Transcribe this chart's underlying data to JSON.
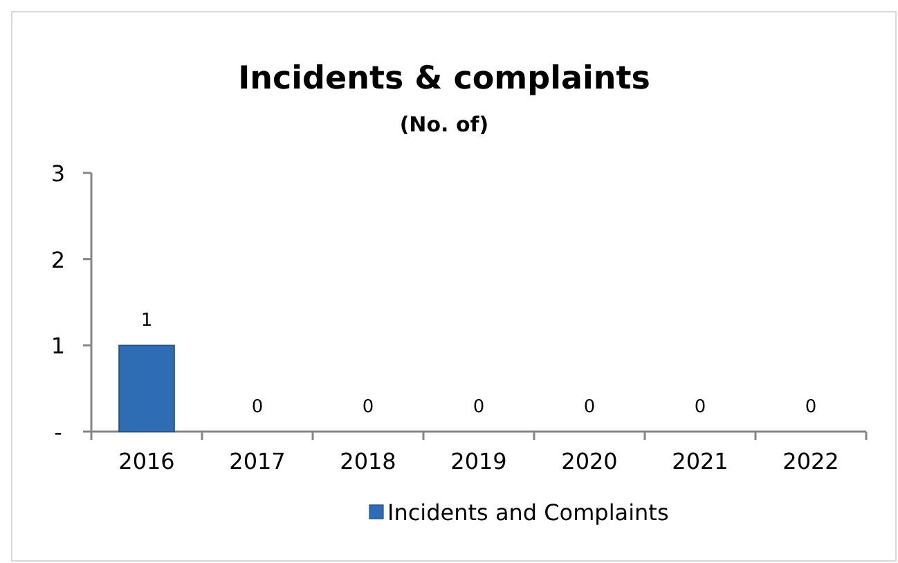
{
  "chart_data": {
    "type": "bar",
    "title": "Incidents & complaints",
    "subtitle": "(No. of)",
    "categories": [
      "2016",
      "2017",
      "2018",
      "2019",
      "2020",
      "2021",
      "2022"
    ],
    "series": [
      {
        "name": "Incidents and Complaints",
        "color": "#2e6db4",
        "values": [
          1,
          0,
          0,
          0,
          0,
          0,
          0
        ]
      }
    ],
    "ylim": [
      0,
      3
    ],
    "yticks": [
      {
        "value": 0,
        "label": "-"
      },
      1,
      2,
      3
    ],
    "data_labels": true,
    "legend": "bottom",
    "grid": false
  }
}
